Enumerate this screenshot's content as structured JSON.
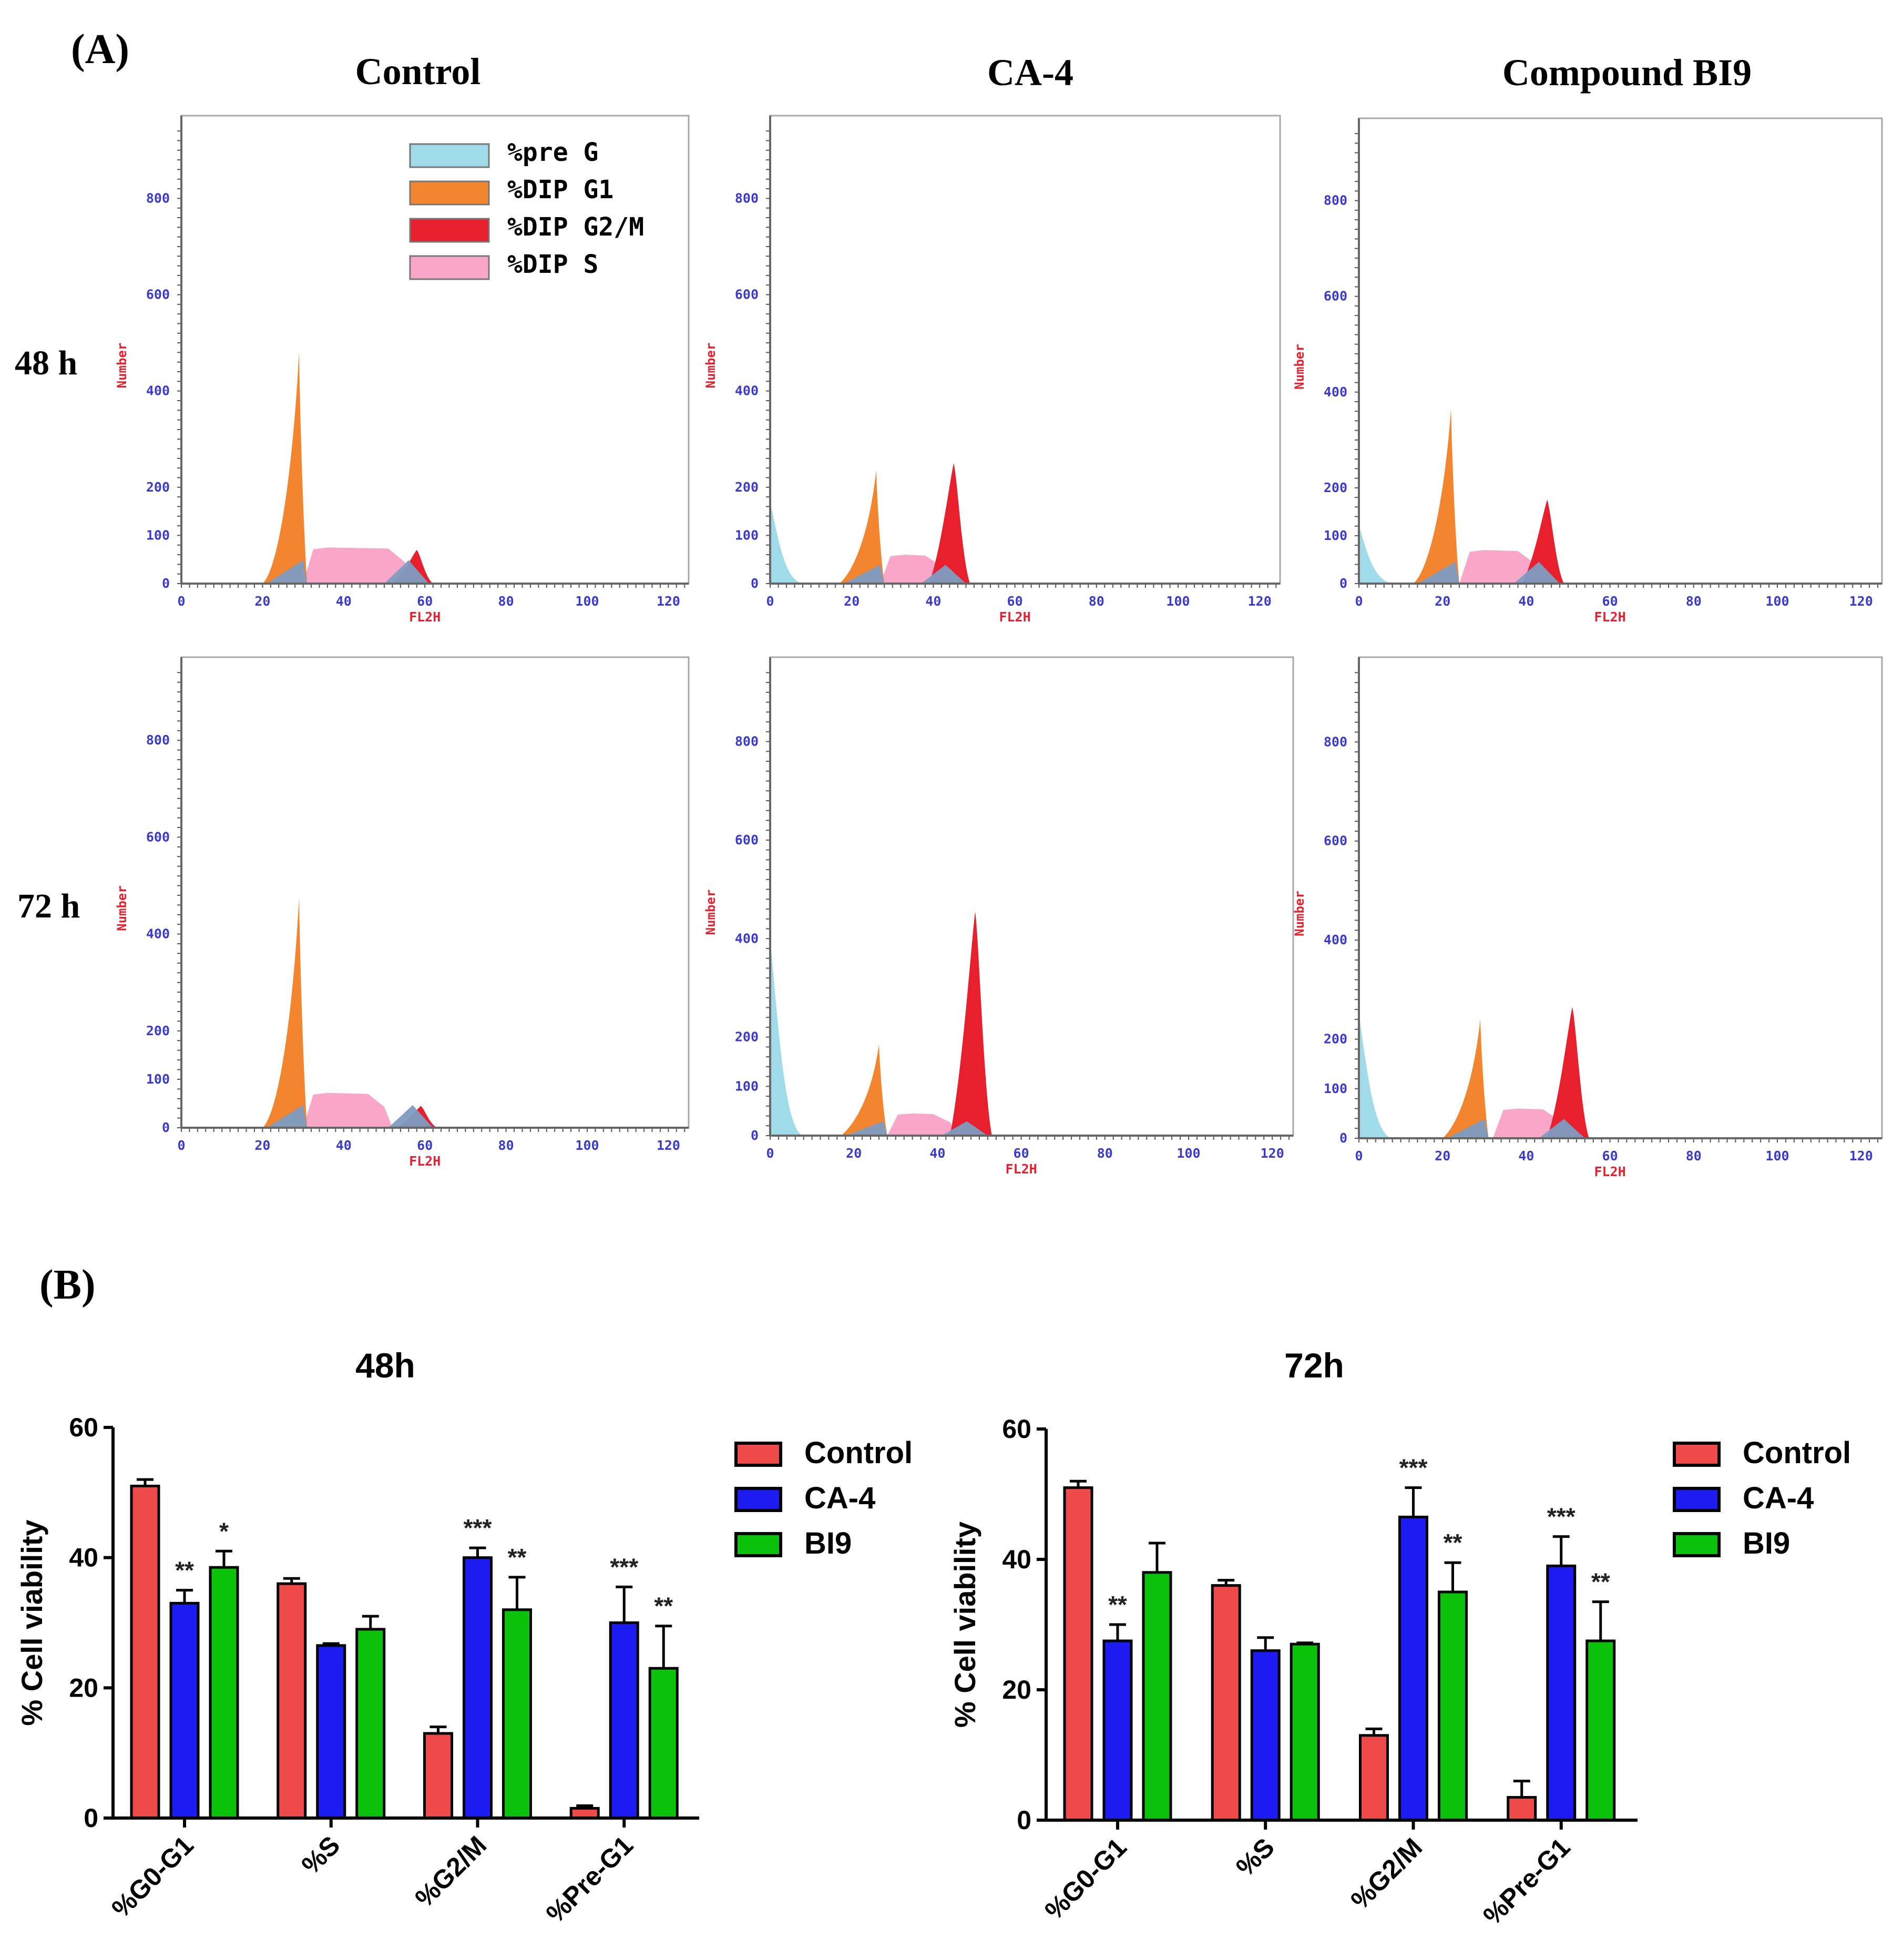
{
  "panel_labels": {
    "a": "(A)",
    "b": "(B)"
  },
  "histogram_titles": [
    "Control",
    "CA-4",
    "Compound BI9"
  ],
  "row_labels": [
    "48 h",
    "72 h"
  ],
  "histogram_axes": {
    "xlabel": "FL2H",
    "ylabel": "Number",
    "x_ticks": [
      "0",
      "20",
      "40",
      "60",
      "80",
      "100",
      "120"
    ],
    "y_ticks": [
      "0",
      "100",
      "200",
      "400",
      "600",
      "800"
    ]
  },
  "histogram_legend": [
    "%pre G",
    "%DIP G1",
    "%DIP G2/M",
    "%DIP S"
  ],
  "colors": {
    "preg": "#9fdbe8",
    "g1": "#f3852f",
    "g2m": "#e8202d",
    "s": "#f9a6c9",
    "overlap": "#7d9cc1",
    "axis_label": "#e8202d",
    "tick_label": "#3a3ad0",
    "bar_control": "#ef4a4a",
    "bar_ca4": "#1c1cf2",
    "bar_bi9": "#0ac20a"
  },
  "chart_data": [
    {
      "type": "bar",
      "title": "48h",
      "categories": [
        "%G0-G1",
        "%S",
        "%G2/M",
        "%Pre-G1"
      ],
      "series": [
        {
          "name": "Control",
          "values": [
            51,
            36,
            13,
            1.5
          ],
          "errors": [
            1,
            0.8,
            1,
            0.4
          ]
        },
        {
          "name": "CA-4",
          "values": [
            33,
            26.5,
            40,
            30
          ],
          "errors": [
            2,
            0.3,
            1.5,
            5.5
          ]
        },
        {
          "name": "BI9",
          "values": [
            38.5,
            29,
            32,
            23
          ],
          "errors": [
            2.5,
            2,
            5,
            6.5
          ]
        }
      ],
      "annotations": [
        {
          "category": "%G0-G1",
          "series": "CA-4",
          "text": "**"
        },
        {
          "category": "%G0-G1",
          "series": "BI9",
          "text": "*"
        },
        {
          "category": "%G2/M",
          "series": "CA-4",
          "text": "***"
        },
        {
          "category": "%G2/M",
          "series": "BI9",
          "text": "**"
        },
        {
          "category": "%Pre-G1",
          "series": "CA-4",
          "text": "***"
        },
        {
          "category": "%Pre-G1",
          "series": "BI9",
          "text": "**"
        }
      ],
      "ylabel": "% Cell viability",
      "ylim": [
        0,
        60
      ],
      "yticks": [
        "0",
        "20",
        "40",
        "60"
      ],
      "legend_position": "right"
    },
    {
      "type": "bar",
      "title": "72h",
      "categories": [
        "%G0-G1",
        "%S",
        "%G2/M",
        "%Pre-G1"
      ],
      "series": [
        {
          "name": "Control",
          "values": [
            51,
            36,
            13,
            3.5
          ],
          "errors": [
            1,
            0.8,
            1,
            2.5
          ]
        },
        {
          "name": "CA-4",
          "values": [
            27.5,
            26,
            46.5,
            39
          ],
          "errors": [
            2.5,
            2,
            4.5,
            4.5
          ]
        },
        {
          "name": "BI9",
          "values": [
            38,
            27,
            35,
            27.5
          ],
          "errors": [
            4.5,
            0.2,
            4.5,
            6
          ]
        }
      ],
      "annotations": [
        {
          "category": "%G0-G1",
          "series": "CA-4",
          "text": "**"
        },
        {
          "category": "%G2/M",
          "series": "CA-4",
          "text": "***"
        },
        {
          "category": "%G2/M",
          "series": "BI9",
          "text": "**"
        },
        {
          "category": "%Pre-G1",
          "series": "CA-4",
          "text": "***"
        },
        {
          "category": "%Pre-G1",
          "series": "BI9",
          "text": "**"
        }
      ],
      "ylabel": "% Cell viability",
      "ylim": [
        0,
        60
      ],
      "yticks": [
        "0",
        "20",
        "40",
        "60"
      ],
      "legend_position": "right"
    }
  ],
  "histograms": [
    {
      "condition": "Control",
      "time": "48 h",
      "preg_peak": 0,
      "g1_peak": 480,
      "g1_pos": 29,
      "g2m_peak": 70,
      "g2m_pos": 58,
      "s_level": 75,
      "s_range": [
        31,
        55
      ]
    },
    {
      "condition": "CA-4",
      "time": "48 h",
      "preg_peak": 170,
      "g1_peak": 235,
      "g1_pos": 26,
      "g2m_peak": 250,
      "g2m_pos": 45,
      "s_level": 60,
      "s_range": [
        28,
        42
      ]
    },
    {
      "condition": "Compound BI9",
      "time": "48 h",
      "preg_peak": 120,
      "g1_peak": 365,
      "g1_pos": 22,
      "g2m_peak": 175,
      "g2m_pos": 45,
      "s_level": 70,
      "s_range": [
        25,
        42
      ]
    },
    {
      "condition": "Control",
      "time": "72 h",
      "preg_peak": 0,
      "g1_peak": 475,
      "g1_pos": 29,
      "g2m_peak": 45,
      "g2m_pos": 59,
      "s_level": 72,
      "s_range": [
        31,
        50
      ]
    },
    {
      "condition": "CA-4",
      "time": "72 h",
      "preg_peak": 400,
      "g1_peak": 185,
      "g1_pos": 26,
      "g2m_peak": 455,
      "g2m_pos": 49,
      "s_level": 45,
      "s_range": [
        29,
        43
      ]
    },
    {
      "condition": "Compound BI9",
      "time": "72 h",
      "preg_peak": 250,
      "g1_peak": 240,
      "g1_pos": 29,
      "g2m_peak": 265,
      "g2m_pos": 51,
      "s_level": 60,
      "s_range": [
        33,
        48
      ]
    }
  ]
}
